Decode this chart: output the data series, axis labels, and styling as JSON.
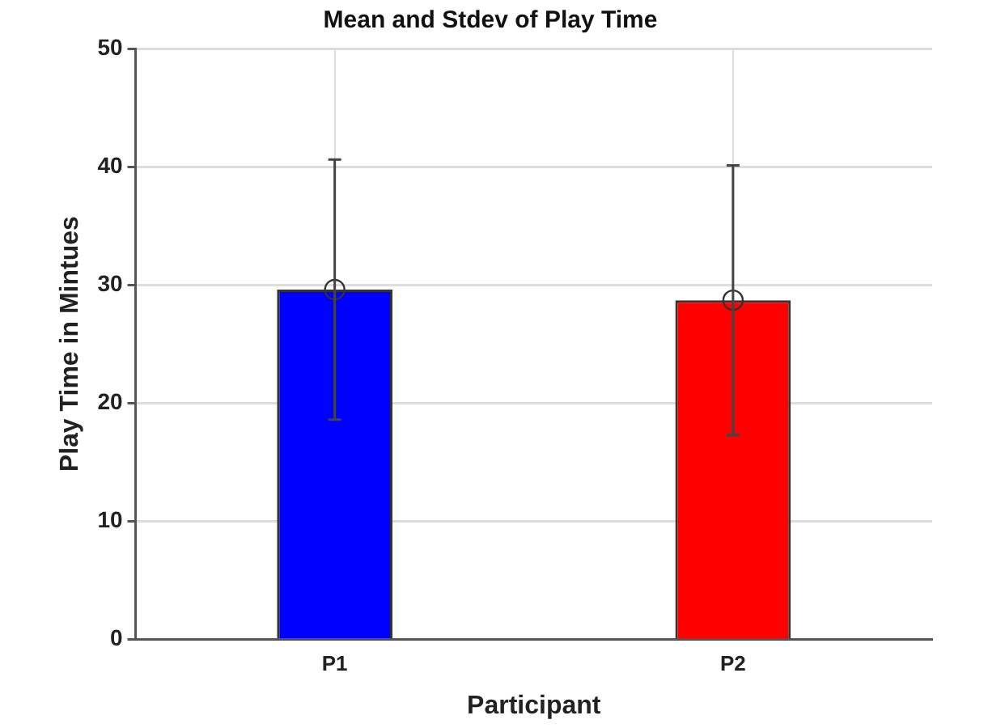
{
  "chart_data": {
    "type": "bar",
    "title": "Mean and Stdev of Play Time",
    "xlabel": "Participant",
    "ylabel": "Play Time in Mintues",
    "categories": [
      "P1",
      "P2"
    ],
    "series": [
      {
        "colors": [
          "#0000ff",
          "#ff0000"
        ],
        "values": [
          29.6,
          28.7
        ],
        "errors": [
          11,
          11.4
        ]
      },
      {
        "type": "scatter",
        "x": [
          "P1",
          "P2"
        ],
        "values": [
          29.6,
          28.7
        ],
        "color": "#333333",
        "marker": "circle"
      }
    ],
    "ylim": [
      0,
      50
    ],
    "yticks": [
      0,
      10,
      20,
      30,
      40,
      50
    ],
    "grid": true
  }
}
